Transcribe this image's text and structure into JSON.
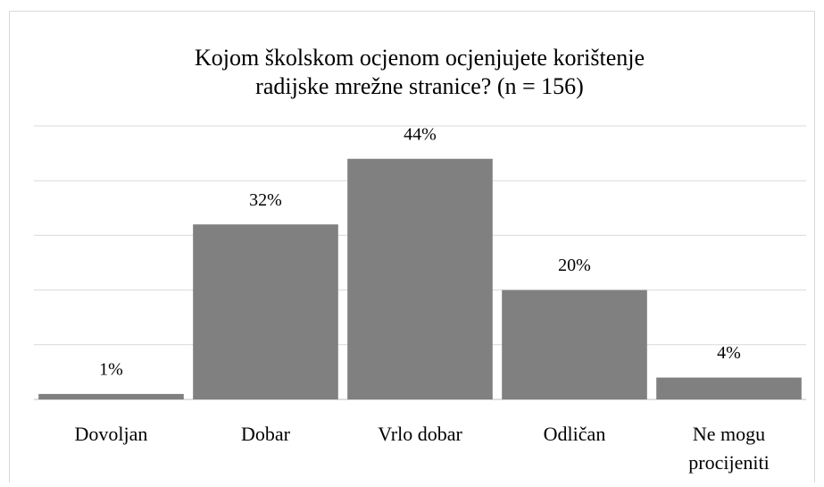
{
  "chart_data": {
    "type": "bar",
    "title": [
      "Kojom školskom ocjenom ocjenjujete korištenje",
      "radijske mrežne stranice? (n = 156)"
    ],
    "categories": [
      "Dovoljan",
      "Dobar",
      "Vrlo dobar",
      "Odličan",
      "Ne mogu procijeniti"
    ],
    "values": [
      1,
      32,
      44,
      20,
      4
    ],
    "value_labels": [
      "1%",
      "32%",
      "44%",
      "20%",
      "4%"
    ],
    "color": "#808080",
    "ylim": [
      0,
      50
    ],
    "yticks": [
      0,
      10,
      20,
      30,
      40,
      50
    ],
    "grid": true
  }
}
